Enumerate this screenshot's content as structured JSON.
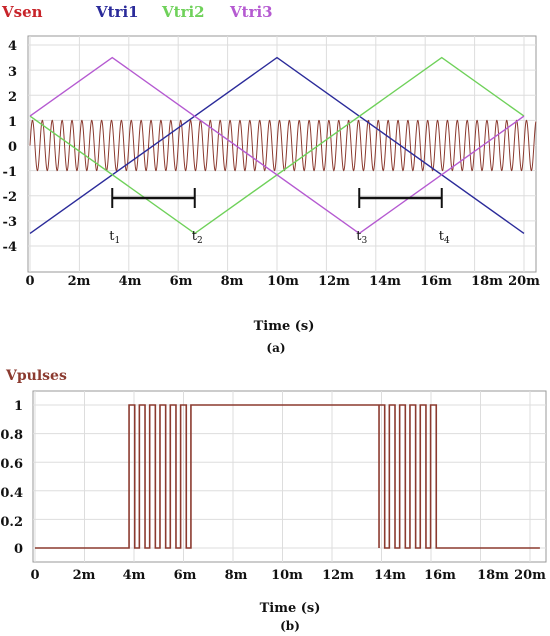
{
  "chart_data": [
    {
      "type": "line",
      "legend": [
        "Vsen",
        "Vtri1",
        "Vtri2",
        "Vtri3"
      ],
      "legend_placement": "top",
      "grid": true,
      "xlim": [
        "0",
        "20.5m"
      ],
      "ylim": [
        -4.5,
        4.3
      ],
      "x_tick_labels": [
        "0",
        "2m",
        "4m",
        "6m",
        "8m",
        "10m",
        "12m",
        "14m",
        "16m",
        "18m",
        "20m"
      ],
      "y_tick_labels": [
        "4",
        "3",
        "2",
        "1",
        "0",
        "-1",
        "-2",
        "-3",
        "-4"
      ],
      "xlabel": "Time (s)",
      "sublabel": "(a)",
      "series": [
        {
          "name": "Vsen",
          "color": "#8b3a2f",
          "shape": "sine",
          "amplitude": 1,
          "cycles_in_window": 50
        },
        {
          "name": "Vtri1",
          "color": "#2b2b9a",
          "points": [
            [
              "0",
              -3.5
            ],
            [
              "10m",
              3.5
            ],
            [
              "20m",
              -3.5
            ]
          ]
        },
        {
          "name": "Vtri2",
          "color": "#6fd15a",
          "points": [
            [
              "0",
              1.17
            ],
            [
              "6.67m",
              -3.5
            ],
            [
              "16.67m",
              3.5
            ],
            [
              "20m",
              1.17
            ]
          ]
        },
        {
          "name": "Vtri3",
          "color": "#b55ad1",
          "points": [
            [
              "0",
              1.17
            ],
            [
              "3.33m",
              3.5
            ],
            [
              "13.33m",
              -3.5
            ],
            [
              "20m",
              1.17
            ]
          ]
        }
      ],
      "annotations": [
        {
          "label": "t",
          "sub": "1",
          "x": "3.33m"
        },
        {
          "label": "t",
          "sub": "2",
          "x": "6.67m"
        },
        {
          "label": "t",
          "sub": "3",
          "x": "13.33m"
        },
        {
          "label": "t",
          "sub": "4",
          "x": "16.67m"
        }
      ],
      "intervals": [
        [
          "3.33m",
          "6.67m"
        ],
        [
          "13.33m",
          "16.67m"
        ]
      ]
    },
    {
      "type": "line",
      "legend": [
        "Vpulses"
      ],
      "legend_placement": "top-left",
      "grid": true,
      "xlim": [
        "0",
        "20.5m"
      ],
      "ylim": [
        -0.08,
        1.1
      ],
      "x_tick_labels": [
        "0",
        "2m",
        "4m",
        "6m",
        "8m",
        "10m",
        "12m",
        "14m",
        "16m",
        "18m",
        "20m"
      ],
      "y_tick_labels": [
        "1",
        "0.8",
        "0.6",
        "0.4",
        "0.2",
        "0"
      ],
      "xlabel": "Time (s)",
      "sublabel": "(b)",
      "series": [
        {
          "name": "Vpulses",
          "color": "#8b3a2f",
          "pwm_regions": [
            [
              "3.8m",
              "6.3m",
              6
            ],
            [
              "13.9m",
              "16.4m",
              6
            ]
          ],
          "high_regions": [
            [
              "6.3m",
              "13.9m"
            ]
          ],
          "values": "0 outside regions, switching 0/1 inside pwm regions, 1 in high regions"
        }
      ]
    }
  ]
}
